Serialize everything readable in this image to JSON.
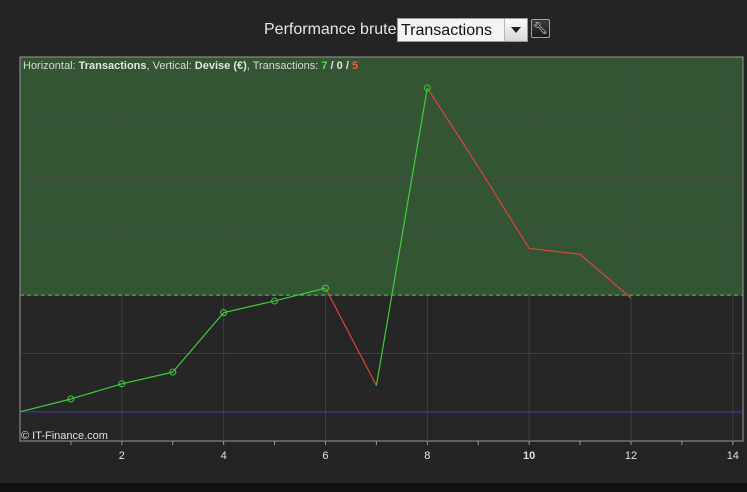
{
  "header": {
    "title": "Performance brute",
    "selected_view": "Transactions"
  },
  "info": {
    "prefix_h": "Horizontal: ",
    "horizontal": "Transactions",
    "prefix_v": ", Vertical: ",
    "vertical": "Devise (€)",
    "prefix_t": ", Transactions: ",
    "count_win": "7",
    "sep1": " / ",
    "count_neutral": "0",
    "sep2": " / ",
    "count_loss": "5"
  },
  "copyright": "© IT-Finance.com",
  "colors": {
    "gain_fill": "#335533",
    "gain_line": "#3ccd3c",
    "loss_line": "#e0433a",
    "baseline": "#3a3ac8",
    "threshold": "#40d040",
    "grid": "#4a4a4a"
  },
  "chart_data": {
    "type": "line",
    "xlim": [
      0,
      14.2
    ],
    "ylim": [
      -0.5,
      6.08
    ],
    "x_ticks": [
      "2",
      "4",
      "6",
      "8",
      "10",
      "12",
      "14"
    ],
    "highlight_tick": "10",
    "grid": true,
    "baseline_y": 0,
    "threshold_y": 2,
    "x": [
      0,
      1,
      2,
      3,
      4,
      5,
      6,
      7,
      8,
      9,
      10,
      11,
      12
    ],
    "values": [
      0,
      0.22,
      0.48,
      0.68,
      1.7,
      1.9,
      2.12,
      0.45,
      5.55,
      4.2,
      2.8,
      2.7,
      1.95
    ],
    "markers": [
      1,
      2,
      3,
      4,
      5,
      6,
      8
    ],
    "segments": [
      "gain",
      "gain",
      "gain",
      "gain",
      "gain",
      "gain",
      "loss",
      "gain",
      "loss",
      "loss",
      "loss",
      "loss"
    ]
  }
}
